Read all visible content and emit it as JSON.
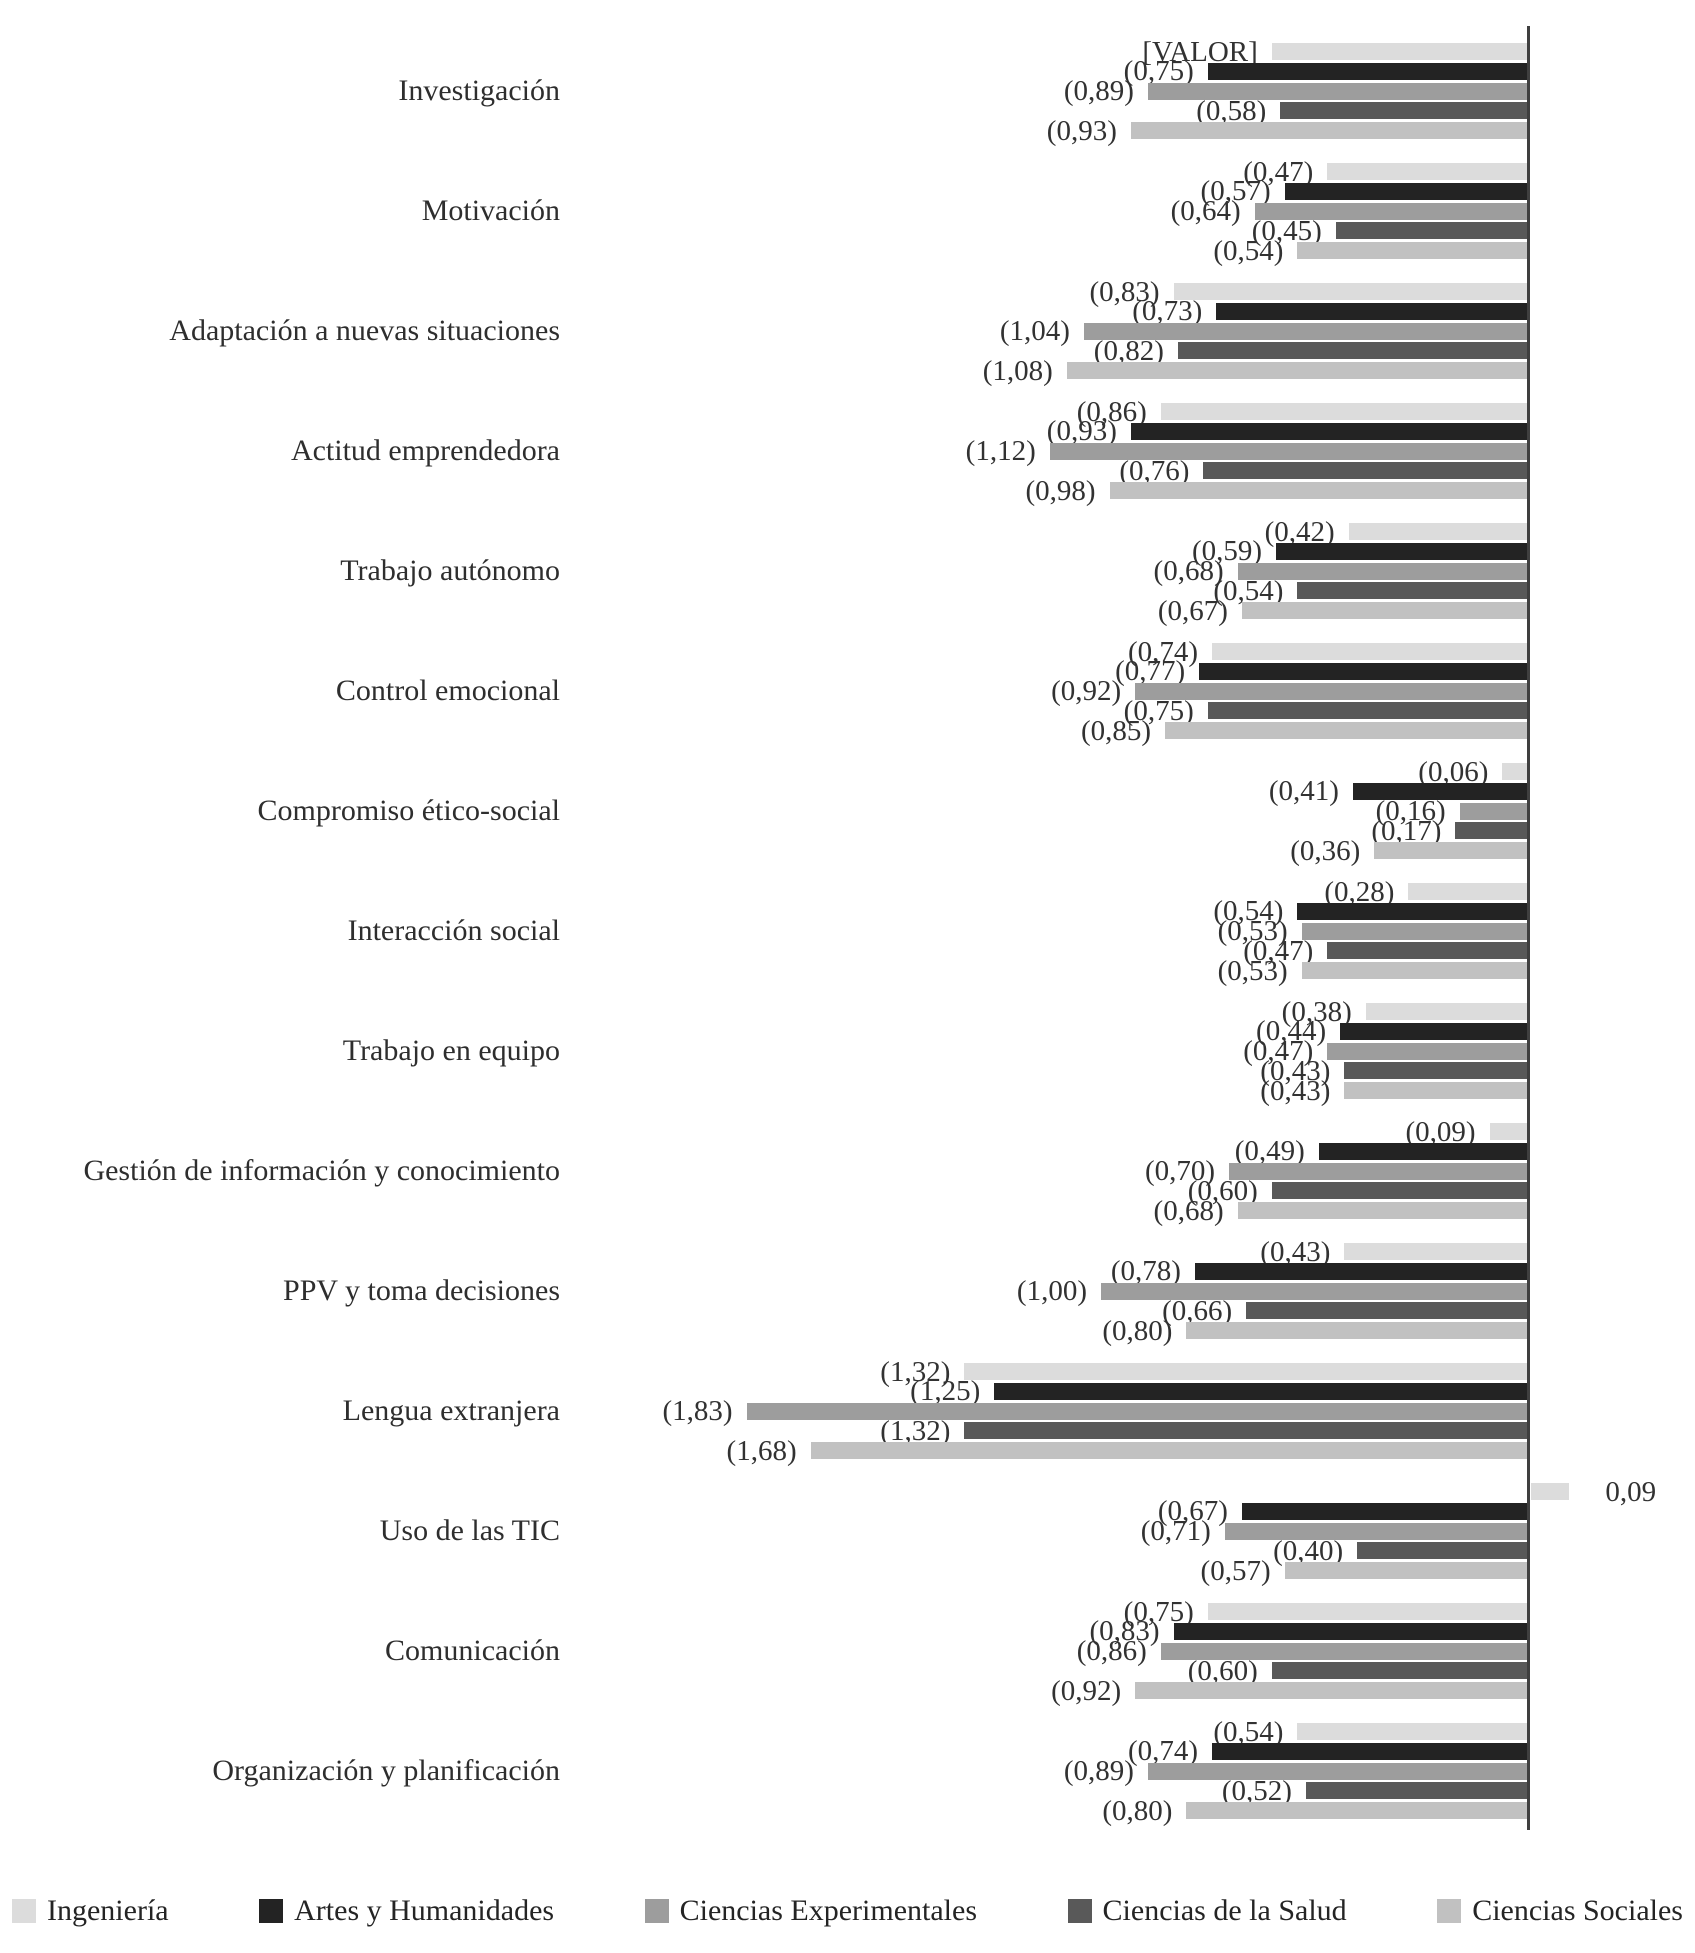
{
  "chart_data": {
    "type": "bar",
    "orientation": "horizontal",
    "note": "values shown in parentheses are negative; bars extend left of the zero axis",
    "xlim": [
      -2.0,
      0.25
    ],
    "grid": false,
    "legend_position": "bottom",
    "categories": [
      "Investigación",
      "Motivación",
      "Adaptación a nuevas situaciones",
      "Actitud emprendedora",
      "Trabajo autónomo",
      "Control emocional",
      "Compromiso ético-social",
      "Interacción social",
      "Trabajo en equipo",
      "Gestión de información y conocimiento",
      "PPV y toma decisiones",
      "Lengua extranjera",
      "Uso de las TIC",
      "Comunicación",
      "Organización y planificación"
    ],
    "series": [
      {
        "name": "Ingeniería",
        "color": "#dcdcdc",
        "values": [
          -0.6,
          -0.47,
          -0.83,
          -0.86,
          -0.42,
          -0.74,
          -0.06,
          -0.28,
          -0.38,
          -0.09,
          -0.43,
          -1.32,
          0.09,
          -0.75,
          -0.54
        ],
        "labels": [
          "[VALOR]",
          "(0,47)",
          "(0,83)",
          "(0,86)",
          "(0,42)",
          "(0,74)",
          "(0,06)",
          "(0,28)",
          "(0,38)",
          "(0,09)",
          "(0,43)",
          "(1,32)",
          "0,09",
          "(0,75)",
          "(0,54)"
        ]
      },
      {
        "name": "Artes y Humanidades",
        "color": "#232323",
        "values": [
          -0.75,
          -0.57,
          -0.73,
          -0.93,
          -0.59,
          -0.77,
          -0.41,
          -0.54,
          -0.44,
          -0.49,
          -0.78,
          -1.25,
          -0.67,
          -0.83,
          -0.74
        ],
        "labels": [
          "(0,75)",
          "(0,57)",
          "(0,73)",
          "(0,93)",
          "(0,59)",
          "(0,77)",
          "(0,41)",
          "(0,54)",
          "(0,44)",
          "(0,49)",
          "(0,78)",
          "(1,25)",
          "(0,67)",
          "(0,83)",
          "(0,74)"
        ]
      },
      {
        "name": "Ciencias Experimentales",
        "color": "#9d9d9d",
        "values": [
          -0.89,
          -0.64,
          -1.04,
          -1.12,
          -0.68,
          -0.92,
          -0.16,
          -0.53,
          -0.47,
          -0.7,
          -1.0,
          -1.83,
          -0.71,
          -0.86,
          -0.89
        ],
        "labels": [
          "(0,89)",
          "(0,64)",
          "(1,04)",
          "(1,12)",
          "(0,68)",
          "(0,92)",
          "(0,16)",
          "(0,53)",
          "(0,47)",
          "(0,70)",
          "(1,00)",
          "(1,83)",
          "(0,71)",
          "(0,86)",
          "(0,89)"
        ]
      },
      {
        "name": "Ciencias de la Salud",
        "color": "#595959",
        "values": [
          -0.58,
          -0.45,
          -0.82,
          -0.76,
          -0.54,
          -0.75,
          -0.17,
          -0.47,
          -0.43,
          -0.6,
          -0.66,
          -1.32,
          -0.4,
          -0.6,
          -0.52
        ],
        "labels": [
          "(0,58)",
          "(0,45)",
          "(0,82)",
          "(0,76)",
          "(0,54)",
          "(0,75)",
          "(0,17)",
          "(0,47)",
          "(0,43)",
          "(0,60)",
          "(0,66)",
          "(1,32)",
          "(0,40)",
          "(0,60)",
          "(0,52)"
        ]
      },
      {
        "name": "Ciencias Sociales",
        "color": "#c1c1c1",
        "values": [
          -0.93,
          -0.54,
          -1.08,
          -0.98,
          -0.67,
          -0.85,
          -0.36,
          -0.53,
          -0.43,
          -0.68,
          -0.8,
          -1.68,
          -0.57,
          -0.92,
          -0.8
        ],
        "labels": [
          "(0,93)",
          "(0,54)",
          "(1,08)",
          "(0,98)",
          "(0,67)",
          "(0,85)",
          "(0,36)",
          "(0,53)",
          "(0,43)",
          "(0,68)",
          "(0,80)",
          "(1,68)",
          "(0,57)",
          "(0,92)",
          "(0,80)"
        ]
      }
    ]
  }
}
